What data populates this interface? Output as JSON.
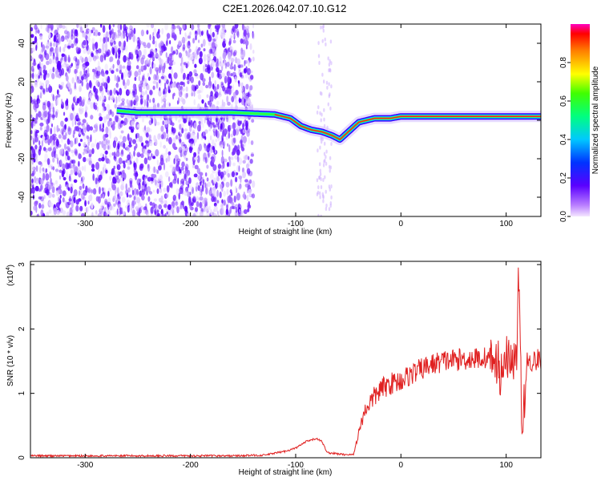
{
  "title": "C2E1.2026.042.07.10.G12",
  "colors": {
    "spectrogram_ridge": "#ff2020",
    "snr_line": "#e02020",
    "scatter": "#6a1bd8"
  },
  "chart_data": [
    {
      "type": "heatmap",
      "xlabel": "Height of straight line (km)",
      "ylabel": "Frequency (Hz)",
      "xlim": [
        -352,
        133
      ],
      "ylim": [
        -50,
        50
      ],
      "xticks": [
        -300,
        -200,
        -100,
        0,
        100
      ],
      "yticks": [
        -40,
        -20,
        0,
        20,
        40
      ],
      "colorbar": {
        "label": "Normalized spectral amplitude",
        "range": [
          0,
          1
        ],
        "ticks": [
          "0.0",
          "0.2",
          "0.4",
          "0.6",
          "0.8"
        ]
      },
      "ridge": {
        "x": [
          -270,
          -250,
          -220,
          -200,
          -160,
          -140,
          -120,
          -105,
          -95,
          -85,
          -75,
          -65,
          -58,
          -50,
          -40,
          -25,
          -10,
          0,
          30,
          80,
          100,
          133
        ],
        "y": [
          5,
          4,
          4,
          4,
          4,
          3.5,
          3,
          1,
          -3,
          -5,
          -6,
          -8,
          -10,
          -6,
          -1,
          1,
          1,
          2,
          2,
          2,
          2,
          2
        ]
      }
    },
    {
      "type": "line",
      "xlabel": "Height of straight line (km)",
      "ylabel": "SNR (10 * v/v)",
      "multiplier": "(x10",
      "multiplier_exp": "4",
      "multiplier_close": ")",
      "xlim": [
        -352,
        133
      ],
      "ylim": [
        0,
        3.05
      ],
      "xticks": [
        -300,
        -200,
        -100,
        0,
        100
      ],
      "yticks": [
        0,
        1,
        2,
        3
      ],
      "series": [
        {
          "x": [
            -352,
            -300,
            -250,
            -200,
            -160,
            -130,
            -110,
            -100,
            -90,
            -80,
            -75,
            -70,
            -55,
            -45,
            -40,
            -35,
            -30,
            -20,
            -10,
            0,
            10,
            20,
            30,
            40,
            50,
            60,
            80,
            90,
            95,
            100,
            105,
            110,
            112,
            115,
            120,
            133
          ],
          "y": [
            0.03,
            0.03,
            0.03,
            0.03,
            0.03,
            0.04,
            0.1,
            0.15,
            0.25,
            0.3,
            0.25,
            0.08,
            0.05,
            0.05,
            0.4,
            0.7,
            0.85,
            1.05,
            1.15,
            1.2,
            1.3,
            1.38,
            1.45,
            1.5,
            1.52,
            1.53,
            1.55,
            1.55,
            1.2,
            1.55,
            1.5,
            1.6,
            3.0,
            0.25,
            1.5,
            1.52
          ]
        }
      ]
    }
  ]
}
